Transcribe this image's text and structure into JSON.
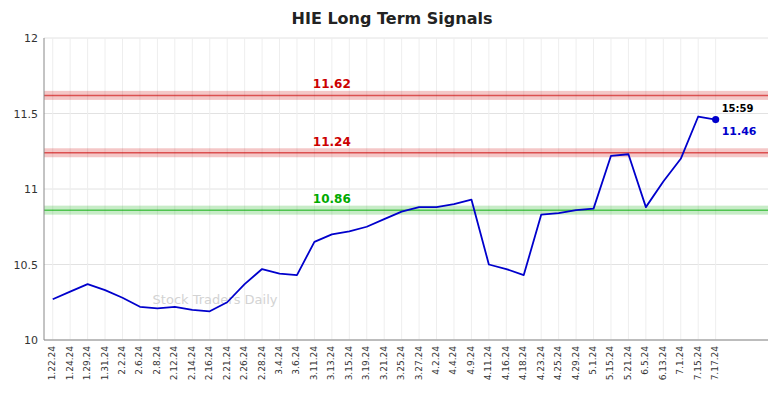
{
  "chart_data": {
    "type": "line",
    "title": "HIE Long Term Signals",
    "categories": [
      "1.22.24",
      "1.24.24",
      "1.29.24",
      "1.31.24",
      "2.2.24",
      "2.6.24",
      "2.8.24",
      "2.12.24",
      "2.14.24",
      "2.16.24",
      "2.21.24",
      "2.26.24",
      "2.28.24",
      "3.4.24",
      "3.6.24",
      "3.11.24",
      "3.13.24",
      "3.15.24",
      "3.19.24",
      "3.21.24",
      "3.25.24",
      "3.27.24",
      "4.2.24",
      "4.4.24",
      "4.9.24",
      "4.11.24",
      "4.16.24",
      "4.18.24",
      "4.23.24",
      "4.25.24",
      "4.29.24",
      "5.1.24",
      "5.15.24",
      "5.21.24",
      "6.5.24",
      "6.13.24",
      "7.1.24",
      "7.15.24",
      "7.17.24"
    ],
    "values": [
      10.27,
      10.32,
      10.37,
      10.33,
      10.28,
      10.22,
      10.21,
      10.22,
      10.2,
      10.19,
      10.25,
      10.37,
      10.47,
      10.44,
      10.43,
      10.65,
      10.7,
      10.72,
      10.75,
      10.8,
      10.85,
      10.88,
      10.88,
      10.9,
      10.93,
      10.5,
      10.47,
      10.43,
      10.83,
      10.84,
      10.86,
      10.87,
      11.22,
      11.23,
      10.88,
      11.05,
      11.2,
      11.48,
      11.46
    ],
    "color": "#0000cc",
    "ylim": [
      10,
      12
    ],
    "yticks": [
      10,
      10.5,
      11,
      11.5,
      12
    ],
    "grid": true,
    "reference_lines": [
      {
        "value": 11.62,
        "label": "11.62",
        "color": "#cc0000"
      },
      {
        "value": 11.24,
        "label": "11.24",
        "color": "#cc0000"
      },
      {
        "value": 10.86,
        "label": "10.86",
        "color": "#00aa00"
      }
    ],
    "annotations": [
      {
        "text": "15:59",
        "color": "#000000"
      },
      {
        "text": "11.46",
        "value": 11.46,
        "color": "#0000cc"
      },
      {
        "text": "Stock Traders Daily",
        "color": "#d3d3d3"
      }
    ]
  }
}
